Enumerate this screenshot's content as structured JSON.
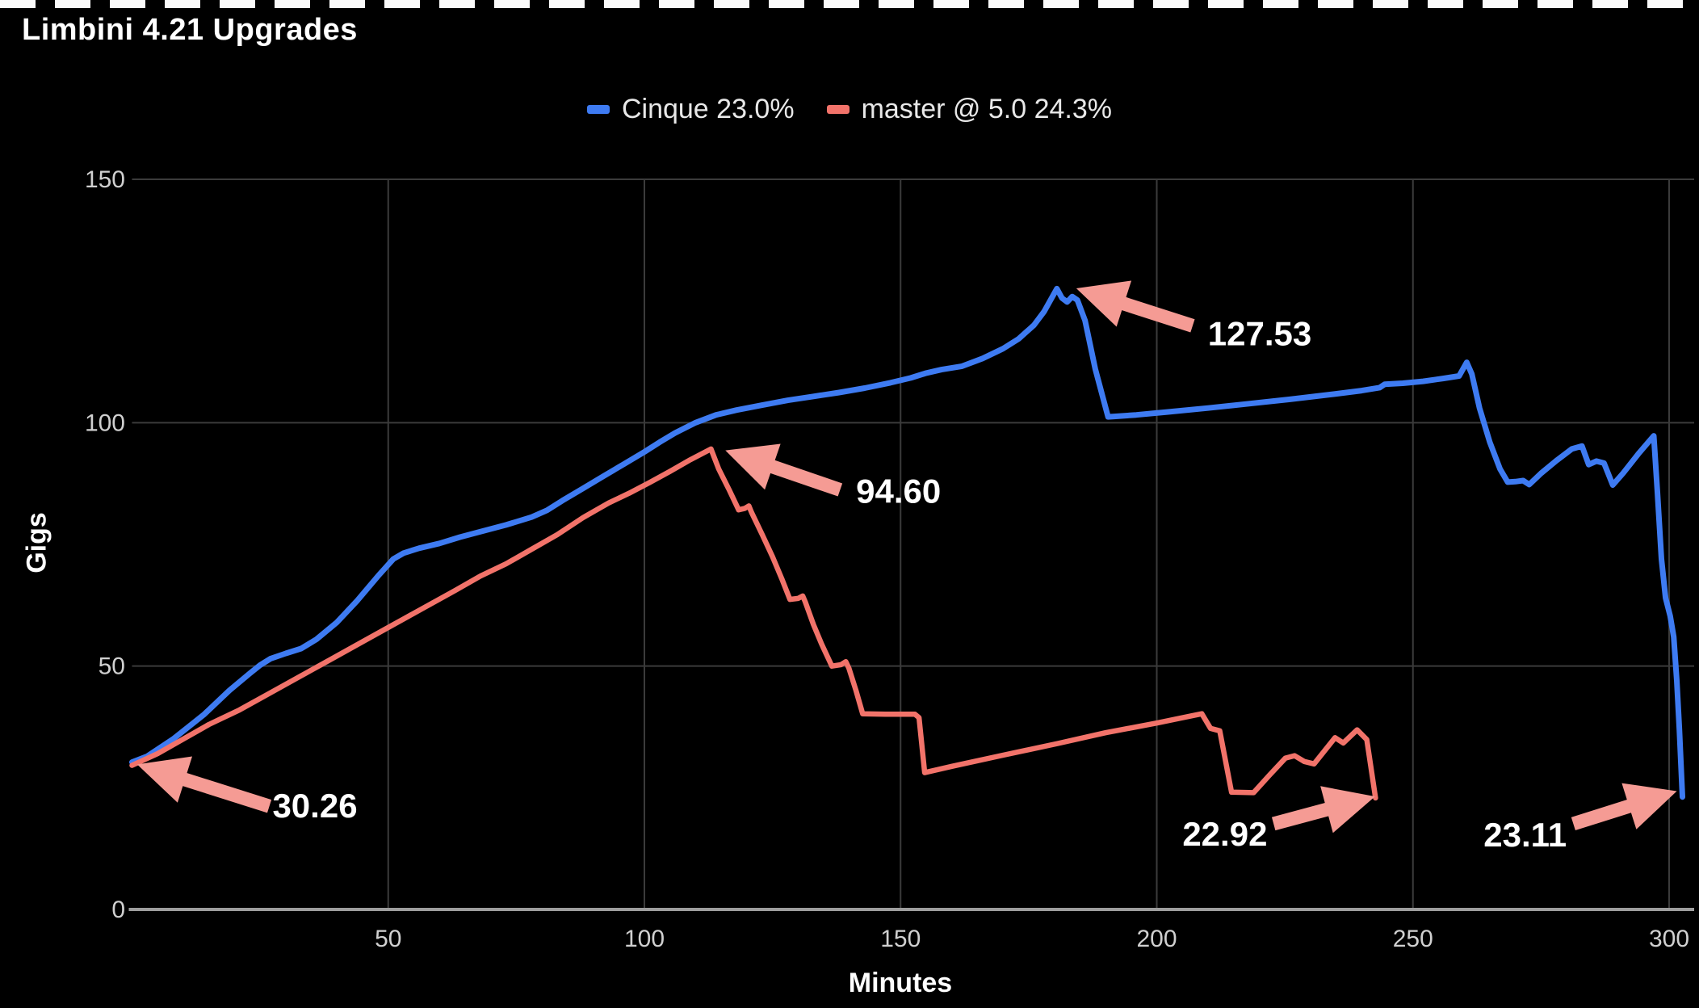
{
  "page": {
    "background": "#000000",
    "top_dash_color": "#fafafa"
  },
  "title": "Limbini 4.21 Upgrades",
  "legend": {
    "items": [
      {
        "label": "Cinque 23.0%",
        "color": "#3e7bf2"
      },
      {
        "label": "master @ 5.0 24.3%",
        "color": "#f2736a"
      }
    ]
  },
  "axes": {
    "x": {
      "title": "Minutes"
    },
    "y": {
      "title": "Gigs"
    }
  },
  "colors": {
    "grid": "#3b3b3b",
    "axis_line": "#9e9e9e",
    "tick_text": "#d0d0d0",
    "annotation_text": "#ffffff",
    "arrow": "#f59b94"
  },
  "chart_data": {
    "type": "line",
    "title": "Limbini 4.21 Upgrades",
    "xlabel": "Minutes",
    "ylabel": "Gigs",
    "xlim": [
      0,
      306
    ],
    "ylim": [
      0,
      150
    ],
    "x_ticks": [
      50,
      100,
      150,
      200,
      250,
      300
    ],
    "y_ticks": [
      0,
      50,
      100,
      150
    ],
    "grid": true,
    "legend_position": "top-center",
    "series": [
      {
        "name": "Cinque 23.0%",
        "color": "#3e7bf2",
        "line_width": 7,
        "points": [
          [
            0,
            30.26
          ],
          [
            3,
            31.5
          ],
          [
            8,
            35
          ],
          [
            14,
            40
          ],
          [
            19,
            45
          ],
          [
            23,
            48.5
          ],
          [
            25,
            50.2
          ],
          [
            27,
            51.5
          ],
          [
            30,
            52.6
          ],
          [
            33,
            53.6
          ],
          [
            36,
            55.5
          ],
          [
            40,
            59
          ],
          [
            44,
            63.5
          ],
          [
            48,
            68.5
          ],
          [
            51,
            72
          ],
          [
            53,
            73.2
          ],
          [
            56,
            74.2
          ],
          [
            60,
            75.2
          ],
          [
            64,
            76.5
          ],
          [
            68,
            77.6
          ],
          [
            73,
            79
          ],
          [
            78,
            80.6
          ],
          [
            81,
            82
          ],
          [
            84,
            84
          ],
          [
            88,
            86.5
          ],
          [
            92,
            89
          ],
          [
            96,
            91.5
          ],
          [
            100,
            94
          ],
          [
            103,
            96
          ],
          [
            106,
            97.9
          ],
          [
            110,
            100
          ],
          [
            114,
            101.6
          ],
          [
            118,
            102.6
          ],
          [
            123,
            103.6
          ],
          [
            128,
            104.6
          ],
          [
            133,
            105.4
          ],
          [
            138,
            106.2
          ],
          [
            143,
            107.1
          ],
          [
            148,
            108.2
          ],
          [
            152,
            109.2
          ],
          [
            155,
            110.2
          ],
          [
            158,
            110.9
          ],
          [
            162,
            111.6
          ],
          [
            166,
            113.2
          ],
          [
            170,
            115.2
          ],
          [
            173,
            117.2
          ],
          [
            176,
            120
          ],
          [
            178,
            122.8
          ],
          [
            180.5,
            127.53
          ],
          [
            181.5,
            125.6
          ],
          [
            182.5,
            124.8
          ],
          [
            183.5,
            125.9
          ],
          [
            184.5,
            125.2
          ],
          [
            186,
            121
          ],
          [
            188,
            111
          ],
          [
            190.5,
            101.2
          ],
          [
            192,
            101.3
          ],
          [
            196,
            101.6
          ],
          [
            202,
            102.2
          ],
          [
            210,
            103
          ],
          [
            218,
            103.9
          ],
          [
            226,
            104.8
          ],
          [
            234,
            105.8
          ],
          [
            240,
            106.6
          ],
          [
            243.5,
            107.2
          ],
          [
            244.5,
            107.9
          ],
          [
            248,
            108.1
          ],
          [
            252,
            108.5
          ],
          [
            256,
            109.1
          ],
          [
            259,
            109.6
          ],
          [
            260.5,
            112.4
          ],
          [
            261.5,
            110
          ],
          [
            263,
            103
          ],
          [
            265,
            96
          ],
          [
            267,
            90.5
          ],
          [
            268.5,
            87.8
          ],
          [
            270,
            87.9
          ],
          [
            271.5,
            88.1
          ],
          [
            272.7,
            87.3
          ],
          [
            275,
            89.6
          ],
          [
            278,
            92.2
          ],
          [
            281,
            94.6
          ],
          [
            283,
            95.2
          ],
          [
            284.3,
            91.4
          ],
          [
            285.8,
            92.1
          ],
          [
            287.3,
            91.7
          ],
          [
            289,
            87.2
          ],
          [
            291,
            89.6
          ],
          [
            294,
            93.6
          ],
          [
            297,
            97.3
          ],
          [
            297.7,
            86
          ],
          [
            298.5,
            72
          ],
          [
            299.3,
            64
          ],
          [
            300.2,
            60.3
          ],
          [
            300.9,
            56
          ],
          [
            301.5,
            47
          ],
          [
            302,
            37
          ],
          [
            302.3,
            30
          ],
          [
            302.6,
            23.11
          ]
        ]
      },
      {
        "name": "master @ 5.0 24.3%",
        "color": "#f2736a",
        "line_width": 6.5,
        "points": [
          [
            0,
            29.6
          ],
          [
            5,
            32
          ],
          [
            10,
            35
          ],
          [
            15,
            38
          ],
          [
            21,
            41
          ],
          [
            27,
            44.5
          ],
          [
            33,
            48
          ],
          [
            39,
            51.5
          ],
          [
            45,
            55
          ],
          [
            51,
            58.5
          ],
          [
            57,
            62
          ],
          [
            63,
            65.5
          ],
          [
            68,
            68.5
          ],
          [
            73,
            71
          ],
          [
            78,
            74
          ],
          [
            83,
            77
          ],
          [
            88,
            80.5
          ],
          [
            93,
            83.5
          ],
          [
            97,
            85.5
          ],
          [
            101,
            87.7
          ],
          [
            105,
            90
          ],
          [
            109,
            92.4
          ],
          [
            113,
            94.6
          ],
          [
            114.5,
            90.5
          ],
          [
            116.5,
            86.3
          ],
          [
            118.4,
            82.1
          ],
          [
            119.6,
            82.4
          ],
          [
            120.4,
            82.9
          ],
          [
            120.9,
            81.6
          ],
          [
            123,
            77
          ],
          [
            125,
            72.5
          ],
          [
            126.8,
            68
          ],
          [
            128.4,
            63.7
          ],
          [
            130,
            63.9
          ],
          [
            130.9,
            64.4
          ],
          [
            131.4,
            63.2
          ],
          [
            133,
            58.5
          ],
          [
            134.6,
            54.5
          ],
          [
            136.6,
            50
          ],
          [
            138.4,
            50.3
          ],
          [
            139.3,
            50.9
          ],
          [
            139.9,
            49.6
          ],
          [
            141.3,
            45
          ],
          [
            142.6,
            40.2
          ],
          [
            147,
            40.1
          ],
          [
            152.8,
            40.1
          ],
          [
            153.6,
            39.4
          ],
          [
            154.7,
            28.1
          ],
          [
            160,
            29.4
          ],
          [
            170,
            31.7
          ],
          [
            180.7,
            34.1
          ],
          [
            190,
            36.3
          ],
          [
            200,
            38.3
          ],
          [
            206,
            39.6
          ],
          [
            208.8,
            40.2
          ],
          [
            210.5,
            37.2
          ],
          [
            212.3,
            36.7
          ],
          [
            214.6,
            24.1
          ],
          [
            218.9,
            24
          ],
          [
            222,
            27.6
          ],
          [
            225.1,
            31.1
          ],
          [
            226.9,
            31.6
          ],
          [
            228.8,
            30.4
          ],
          [
            230.7,
            29.9
          ],
          [
            234.8,
            35.3
          ],
          [
            236.4,
            34.2
          ],
          [
            239.1,
            36.9
          ],
          [
            241,
            34.9
          ],
          [
            242.7,
            22.92
          ]
        ]
      }
    ],
    "annotations": [
      {
        "text": "30.26",
        "tip": [
          1,
          29.8
        ],
        "tail": [
          26.8,
          21.2
        ],
        "label": [
          35.7,
          21.2
        ]
      },
      {
        "text": "94.60",
        "tip": [
          115.8,
          94.3
        ],
        "tail": [
          138.2,
          86.2
        ],
        "label": [
          149.6,
          85.9
        ]
      },
      {
        "text": "127.53",
        "tip": [
          184.3,
          127.6
        ],
        "tail": [
          207.0,
          119.9
        ],
        "label": [
          220.1,
          118.2
        ]
      },
      {
        "text": "22.92",
        "tip": [
          242.6,
          23.2
        ],
        "tail": [
          222.8,
          17.6
        ],
        "label": [
          213.3,
          15.4
        ]
      },
      {
        "text": "23.11",
        "tip": [
          301.5,
          24.3
        ],
        "tail": [
          281.3,
          17.6
        ],
        "label": [
          271.9,
          15.3
        ]
      }
    ]
  }
}
